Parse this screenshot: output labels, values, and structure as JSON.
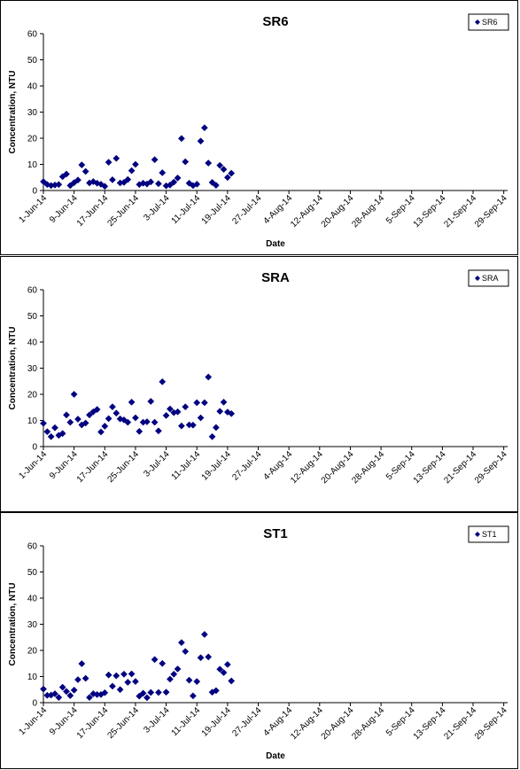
{
  "chart_data": [
    {
      "type": "scatter",
      "title": "SR6",
      "xlabel": "Date",
      "ylabel": "Concentration, NTU",
      "legend": [
        "SR6"
      ],
      "legend_position": "top-right",
      "marker": "diamond",
      "color": "#000080",
      "ylim": [
        0,
        60
      ],
      "yticks": [
        0,
        10,
        20,
        30,
        40,
        50,
        60
      ],
      "xlim": [
        "2014-06-01",
        "2014-09-30"
      ],
      "xticks": [
        "1-Jun-14",
        "9-Jun-14",
        "17-Jun-14",
        "25-Jun-14",
        "3-Jul-14",
        "11-Jul-14",
        "19-Jul-14",
        "27-Jul-14",
        "4-Aug-14",
        "12-Aug-14",
        "20-Aug-14",
        "28-Aug-14",
        "5-Sep-14",
        "13-Sep-14",
        "21-Sep-14",
        "29-Sep-14"
      ],
      "series": [
        {
          "name": "SR6",
          "points": [
            [
              "2014-06-01",
              3.4
            ],
            [
              "2014-06-02",
              2.3
            ],
            [
              "2014-06-03",
              1.9
            ],
            [
              "2014-06-04",
              2.1
            ],
            [
              "2014-06-05",
              2.3
            ],
            [
              "2014-06-06",
              5.3
            ],
            [
              "2014-06-07",
              6.3
            ],
            [
              "2014-06-08",
              1.9
            ],
            [
              "2014-06-09",
              3.0
            ],
            [
              "2014-06-10",
              4.0
            ],
            [
              "2014-06-11",
              9.8
            ],
            [
              "2014-06-12",
              7.3
            ],
            [
              "2014-06-13",
              2.9
            ],
            [
              "2014-06-14",
              3.4
            ],
            [
              "2014-06-15",
              2.8
            ],
            [
              "2014-06-16",
              2.4
            ],
            [
              "2014-06-17",
              1.6
            ],
            [
              "2014-06-18",
              10.8
            ],
            [
              "2014-06-19",
              4.1
            ],
            [
              "2014-06-20",
              12.3
            ],
            [
              "2014-06-21",
              2.9
            ],
            [
              "2014-06-22",
              3.1
            ],
            [
              "2014-06-23",
              4.2
            ],
            [
              "2014-06-24",
              7.6
            ],
            [
              "2014-06-25",
              10.0
            ],
            [
              "2014-06-26",
              2.3
            ],
            [
              "2014-06-27",
              2.8
            ],
            [
              "2014-06-28",
              2.5
            ],
            [
              "2014-06-29",
              3.3
            ],
            [
              "2014-06-30",
              11.8
            ],
            [
              "2014-07-01",
              2.6
            ],
            [
              "2014-07-02",
              6.8
            ],
            [
              "2014-07-03",
              1.8
            ],
            [
              "2014-07-04",
              2.1
            ],
            [
              "2014-07-05",
              3.2
            ],
            [
              "2014-07-06",
              4.8
            ],
            [
              "2014-07-07",
              19.9
            ],
            [
              "2014-07-08",
              11.0
            ],
            [
              "2014-07-09",
              2.8
            ],
            [
              "2014-07-10",
              1.9
            ],
            [
              "2014-07-11",
              2.4
            ],
            [
              "2014-07-12",
              18.9
            ],
            [
              "2014-07-13",
              24.0
            ],
            [
              "2014-07-14",
              10.5
            ],
            [
              "2014-07-15",
              3.1
            ],
            [
              "2014-07-16",
              2.0
            ],
            [
              "2014-07-17",
              9.6
            ],
            [
              "2014-07-18",
              8.1
            ],
            [
              "2014-07-19",
              5.0
            ],
            [
              "2014-07-20",
              6.6
            ]
          ]
        }
      ]
    },
    {
      "type": "scatter",
      "title": "SRA",
      "xlabel": "",
      "ylabel": "Concentration, NTU",
      "legend": [
        "SRA"
      ],
      "legend_position": "top-right",
      "marker": "diamond",
      "color": "#000080",
      "ylim": [
        0,
        60
      ],
      "yticks": [
        0,
        10,
        20,
        30,
        40,
        50,
        60
      ],
      "xlim": [
        "2014-06-01",
        "2014-09-30"
      ],
      "xticks": [
        "1-Jun-14",
        "9-Jun-14",
        "17-Jun-14",
        "25-Jun-14",
        "3-Jul-14",
        "11-Jul-14",
        "19-Jul-14",
        "27-Jul-14",
        "4-Aug-14",
        "12-Aug-14",
        "20-Aug-14",
        "28-Aug-14",
        "5-Sep-14",
        "13-Sep-14",
        "21-Sep-14",
        "29-Sep-14"
      ],
      "series": [
        {
          "name": "SRA",
          "points": [
            [
              "2014-06-01",
              8.9
            ],
            [
              "2014-06-02",
              5.7
            ],
            [
              "2014-06-03",
              3.8
            ],
            [
              "2014-06-04",
              7.2
            ],
            [
              "2014-06-05",
              4.3
            ],
            [
              "2014-06-06",
              5.0
            ],
            [
              "2014-06-07",
              12.1
            ],
            [
              "2014-06-08",
              9.3
            ],
            [
              "2014-06-09",
              20.0
            ],
            [
              "2014-06-10",
              10.5
            ],
            [
              "2014-06-11",
              8.3
            ],
            [
              "2014-06-12",
              9.0
            ],
            [
              "2014-06-13",
              12.1
            ],
            [
              "2014-06-14",
              13.3
            ],
            [
              "2014-06-15",
              14.2
            ],
            [
              "2014-06-16",
              5.6
            ],
            [
              "2014-06-17",
              7.8
            ],
            [
              "2014-06-18",
              10.7
            ],
            [
              "2014-06-19",
              15.2
            ],
            [
              "2014-06-20",
              12.8
            ],
            [
              "2014-06-21",
              10.6
            ],
            [
              "2014-06-22",
              10.2
            ],
            [
              "2014-06-23",
              9.3
            ],
            [
              "2014-06-24",
              17.0
            ],
            [
              "2014-06-25",
              11.0
            ],
            [
              "2014-06-26",
              5.8
            ],
            [
              "2014-06-27",
              9.3
            ],
            [
              "2014-06-28",
              9.5
            ],
            [
              "2014-06-29",
              17.3
            ],
            [
              "2014-06-30",
              9.3
            ],
            [
              "2014-07-01",
              6.0
            ],
            [
              "2014-07-02",
              24.8
            ],
            [
              "2014-07-03",
              11.9
            ],
            [
              "2014-07-04",
              14.4
            ],
            [
              "2014-07-05",
              13.0
            ],
            [
              "2014-07-06",
              13.3
            ],
            [
              "2014-07-07",
              7.9
            ],
            [
              "2014-07-08",
              15.2
            ],
            [
              "2014-07-09",
              8.3
            ],
            [
              "2014-07-10",
              8.2
            ],
            [
              "2014-07-11",
              16.8
            ],
            [
              "2014-07-12",
              11.0
            ],
            [
              "2014-07-13",
              16.8
            ],
            [
              "2014-07-14",
              26.6
            ],
            [
              "2014-07-15",
              3.8
            ],
            [
              "2014-07-16",
              7.3
            ],
            [
              "2014-07-17",
              13.5
            ],
            [
              "2014-07-18",
              17.0
            ],
            [
              "2014-07-19",
              13.2
            ],
            [
              "2014-07-20",
              12.6
            ]
          ]
        }
      ]
    },
    {
      "type": "scatter",
      "title": "ST1",
      "xlabel": "Date",
      "ylabel": "Concentration, NTU",
      "legend": [
        "ST1"
      ],
      "legend_position": "top-right",
      "marker": "diamond",
      "color": "#000080",
      "ylim": [
        0,
        60
      ],
      "yticks": [
        0,
        10,
        20,
        30,
        40,
        50,
        60
      ],
      "xlim": [
        "2014-06-01",
        "2014-09-30"
      ],
      "xticks": [
        "1-Jun-14",
        "9-Jun-14",
        "17-Jun-14",
        "25-Jun-14",
        "3-Jul-14",
        "11-Jul-14",
        "19-Jul-14",
        "27-Jul-14",
        "4-Aug-14",
        "12-Aug-14",
        "20-Aug-14",
        "28-Aug-14",
        "5-Sep-14",
        "13-Sep-14",
        "21-Sep-14",
        "29-Sep-14"
      ],
      "series": [
        {
          "name": "ST1",
          "points": [
            [
              "2014-06-01",
              5.2
            ],
            [
              "2014-06-02",
              2.8
            ],
            [
              "2014-06-03",
              2.9
            ],
            [
              "2014-06-04",
              3.4
            ],
            [
              "2014-06-05",
              2.0
            ],
            [
              "2014-06-06",
              5.9
            ],
            [
              "2014-06-07",
              4.3
            ],
            [
              "2014-06-08",
              2.7
            ],
            [
              "2014-06-09",
              4.8
            ],
            [
              "2014-06-10",
              8.8
            ],
            [
              "2014-06-11",
              14.9
            ],
            [
              "2014-06-12",
              9.3
            ],
            [
              "2014-06-13",
              2.0
            ],
            [
              "2014-06-14",
              3.4
            ],
            [
              "2014-06-15",
              3.1
            ],
            [
              "2014-06-16",
              3.1
            ],
            [
              "2014-06-17",
              3.8
            ],
            [
              "2014-06-18",
              10.6
            ],
            [
              "2014-06-19",
              6.3
            ],
            [
              "2014-06-20",
              10.3
            ],
            [
              "2014-06-21",
              5.0
            ],
            [
              "2014-06-22",
              10.9
            ],
            [
              "2014-06-23",
              7.8
            ],
            [
              "2014-06-24",
              11.0
            ],
            [
              "2014-06-25",
              8.1
            ],
            [
              "2014-06-26",
              2.5
            ],
            [
              "2014-06-27",
              3.6
            ],
            [
              "2014-06-28",
              1.9
            ],
            [
              "2014-06-29",
              3.9
            ],
            [
              "2014-06-30",
              16.5
            ],
            [
              "2014-07-01",
              3.9
            ],
            [
              "2014-07-02",
              15.0
            ],
            [
              "2014-07-03",
              4.0
            ],
            [
              "2014-07-04",
              9.0
            ],
            [
              "2014-07-05",
              10.9
            ],
            [
              "2014-07-06",
              12.9
            ],
            [
              "2014-07-07",
              23.0
            ],
            [
              "2014-07-08",
              19.6
            ],
            [
              "2014-07-09",
              8.6
            ],
            [
              "2014-07-10",
              2.6
            ],
            [
              "2014-07-11",
              8.1
            ],
            [
              "2014-07-12",
              17.2
            ],
            [
              "2014-07-13",
              26.1
            ],
            [
              "2014-07-14",
              17.5
            ],
            [
              "2014-07-15",
              4.0
            ],
            [
              "2014-07-16",
              4.6
            ],
            [
              "2014-07-17",
              12.8
            ],
            [
              "2014-07-18",
              11.5
            ],
            [
              "2014-07-19",
              14.6
            ],
            [
              "2014-07-20",
              8.3
            ]
          ]
        }
      ]
    }
  ]
}
